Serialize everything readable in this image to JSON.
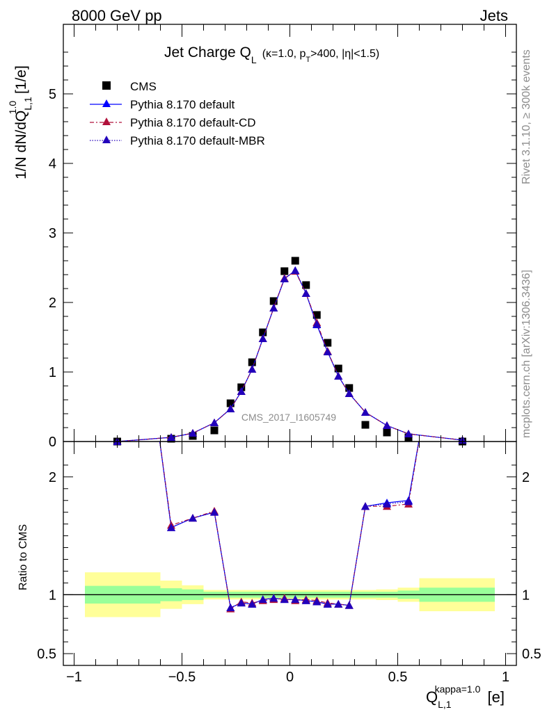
{
  "header": {
    "energy_label": "8000 GeV pp",
    "process_label": "Jets",
    "side_rivet": "Rivet 3.1.10, ≥ 300k events",
    "side_mcplots": "mcplots.cern.ch [arXiv:1306.3436]",
    "watermark": "CMS_2017_I1605749"
  },
  "colors": {
    "cms": "#000000",
    "default": "#0000ff",
    "default_cd": "#b0103a",
    "default_mbr": "#2200bb",
    "band_inner": "#99ff99",
    "band_outer": "#ffff99"
  },
  "chart_data": [
    {
      "type": "scatter",
      "title": "Jet Charge Q_L (κ=1.0, p_T>400, |η|<1.5)",
      "title_parts": {
        "main": "Jet Charge Q",
        "main_sub": "L",
        "cond_a": "(κ=1.0, p",
        "cond_sub": "T",
        "cond_b": ">400, |η|<1.5)"
      },
      "ylabel_parts": {
        "a": "1/N dN/dQ",
        "sub": "L,1",
        "sup": "1.0",
        "b": " [1/e]"
      },
      "xlim": [
        -1.05,
        1.05
      ],
      "ylim": [
        0,
        6
      ],
      "y_ticks": [
        0,
        1,
        2,
        3,
        4,
        5
      ],
      "legend_position": "top-left",
      "x": [
        -0.8,
        -0.55,
        -0.45,
        -0.35,
        -0.275,
        -0.225,
        -0.175,
        -0.125,
        -0.075,
        -0.025,
        0.025,
        0.075,
        0.125,
        0.175,
        0.225,
        0.275,
        0.35,
        0.45,
        0.55,
        0.8
      ],
      "series": [
        {
          "name": "CMS",
          "marker": "square",
          "values": [
            0.0,
            0.04,
            0.08,
            0.16,
            0.55,
            0.78,
            1.14,
            1.57,
            2.02,
            2.45,
            2.6,
            2.25,
            1.82,
            1.42,
            1.05,
            0.77,
            0.24,
            0.13,
            0.06,
            0.0
          ]
        },
        {
          "name": "Pythia 8.170 default",
          "marker": "triangle",
          "line": "solid",
          "values": [
            0.0,
            0.06,
            0.12,
            0.27,
            0.47,
            0.72,
            1.04,
            1.48,
            1.92,
            2.34,
            2.46,
            2.13,
            1.68,
            1.29,
            0.94,
            0.69,
            0.42,
            0.23,
            0.11,
            0.02
          ]
        },
        {
          "name": "Pythia 8.170 default-CD",
          "marker": "triangle",
          "line": "dashdot",
          "values": [
            0.0,
            0.06,
            0.12,
            0.27,
            0.47,
            0.72,
            1.04,
            1.48,
            1.92,
            2.35,
            2.45,
            2.13,
            1.71,
            1.3,
            0.94,
            0.69,
            0.42,
            0.23,
            0.11,
            0.02
          ]
        },
        {
          "name": "Pythia 8.170 default-MBR",
          "marker": "triangle",
          "line": "dotted",
          "values": [
            0.0,
            0.06,
            0.12,
            0.27,
            0.47,
            0.72,
            1.04,
            1.48,
            1.92,
            2.34,
            2.46,
            2.13,
            1.69,
            1.29,
            0.94,
            0.69,
            0.42,
            0.23,
            0.11,
            0.02
          ]
        }
      ]
    },
    {
      "type": "line",
      "ylabel": "Ratio to CMS",
      "xlabel_parts": {
        "a": "Q",
        "sub": "L,1",
        "sup": "kappa=1.0",
        "b": " [e]"
      },
      "xlim": [
        -1.05,
        1.05
      ],
      "ylim": [
        0.4,
        2.3
      ],
      "x_ticks": [
        -1,
        -0.5,
        0,
        0.5,
        1
      ],
      "x_tick_labels": [
        "−1",
        "−0.5",
        "0",
        "0.5",
        "1"
      ],
      "y_ticks": [
        0.5,
        1,
        2
      ],
      "y_tick_labels": [
        "0.5",
        "1",
        "2"
      ],
      "reference_line": 1,
      "x": [
        -0.55,
        -0.45,
        -0.35,
        -0.275,
        -0.225,
        -0.175,
        -0.125,
        -0.075,
        -0.025,
        0.025,
        0.075,
        0.125,
        0.175,
        0.225,
        0.275,
        0.35,
        0.45,
        0.55
      ],
      "series": [
        {
          "name": "Pythia 8.170 default",
          "values": [
            1.57,
            1.65,
            1.7,
            0.89,
            0.93,
            0.92,
            0.96,
            0.97,
            0.96,
            0.96,
            0.95,
            0.94,
            0.92,
            0.92,
            0.91,
            1.75,
            1.78,
            1.8
          ]
        },
        {
          "name": "Pythia 8.170 default-CD",
          "values": [
            1.59,
            1.65,
            1.71,
            0.88,
            0.94,
            0.93,
            0.95,
            0.96,
            0.97,
            0.95,
            0.96,
            0.95,
            0.93,
            0.92,
            0.91,
            1.75,
            1.75,
            1.77
          ]
        },
        {
          "name": "Pythia 8.170 default-MBR",
          "values": [
            1.57,
            1.65,
            1.7,
            0.89,
            0.93,
            0.92,
            0.96,
            0.97,
            0.96,
            0.96,
            0.95,
            0.94,
            0.92,
            0.92,
            0.91,
            1.75,
            1.77,
            1.79
          ]
        }
      ],
      "uncertainty_bands": {
        "edges": [
          -0.95,
          -0.6,
          -0.5,
          -0.4,
          0.4,
          0.5,
          0.6,
          0.95
        ],
        "inner": [
          0.075,
          0.055,
          0.045,
          0.025,
          0.025,
          0.035,
          0.06
        ],
        "outer": [
          0.19,
          0.12,
          0.08,
          0.04,
          0.045,
          0.06,
          0.14
        ]
      }
    }
  ]
}
